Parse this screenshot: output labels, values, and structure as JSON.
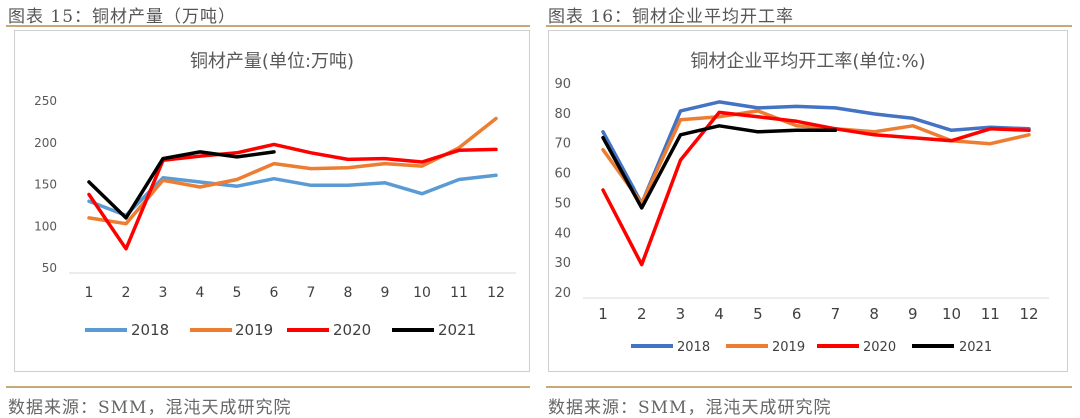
{
  "left_figure": {
    "caption": "图表 15：铜材产量（万吨）",
    "source": "数据来源：SMM，混沌天成研究院"
  },
  "right_figure": {
    "caption": "图表 16：铜材企业平均开工率",
    "source": "数据来源：SMM，混沌天成研究院"
  },
  "chart_data": [
    {
      "type": "line",
      "title": "铜材产量(单位:万吨)",
      "categories": [
        "1",
        "2",
        "3",
        "4",
        "5",
        "6",
        "7",
        "8",
        "9",
        "10",
        "11",
        "12"
      ],
      "ylim": [
        50,
        250
      ],
      "yticks": [
        50,
        100,
        150,
        200,
        250
      ],
      "grid": false,
      "legend_position": "bottom",
      "series": [
        {
          "name": "2018",
          "color": "#5b9bd5",
          "values": [
            130,
            113,
            158,
            153,
            148,
            157,
            149,
            149,
            152,
            139,
            156,
            161
          ]
        },
        {
          "name": "2019",
          "color": "#ed7d31",
          "values": [
            110,
            103,
            155,
            147,
            156,
            175,
            169,
            170,
            175,
            172,
            194,
            229
          ]
        },
        {
          "name": "2020",
          "color": "#ff0000",
          "values": [
            138,
            73,
            179,
            184,
            188,
            198,
            188,
            180,
            181,
            177,
            191,
            192
          ]
        },
        {
          "name": "2021",
          "color": "#000000",
          "values": [
            153,
            110,
            181,
            189,
            183,
            189,
            null,
            null,
            null,
            null,
            null,
            null
          ]
        }
      ]
    },
    {
      "type": "line",
      "title": "铜材企业平均开工率(单位:%)",
      "categories": [
        "1",
        "2",
        "3",
        "4",
        "5",
        "6",
        "7",
        "8",
        "9",
        "10",
        "11",
        "12"
      ],
      "ylim": [
        20,
        90
      ],
      "yticks": [
        20,
        30,
        40,
        50,
        60,
        70,
        80,
        90
      ],
      "grid": false,
      "legend_position": "bottom",
      "series": [
        {
          "name": "2018",
          "color": "#4472c4",
          "values": [
            74,
            50,
            81,
            84,
            82,
            82.5,
            82,
            80,
            78.5,
            74.5,
            75.5,
            75
          ]
        },
        {
          "name": "2019",
          "color": "#ed7d31",
          "values": [
            68,
            50,
            78,
            79,
            81,
            76,
            75,
            74,
            76,
            71,
            70,
            73
          ]
        },
        {
          "name": "2020",
          "color": "#ff0000",
          "values": [
            54.5,
            29.5,
            64.5,
            80.5,
            79,
            77.5,
            75,
            73,
            72,
            71,
            75,
            74.5
          ]
        },
        {
          "name": "2021",
          "color": "#000000",
          "values": [
            72,
            48.5,
            73,
            76,
            74,
            74.5,
            74.5,
            null,
            null,
            null,
            null,
            null
          ]
        }
      ]
    }
  ]
}
